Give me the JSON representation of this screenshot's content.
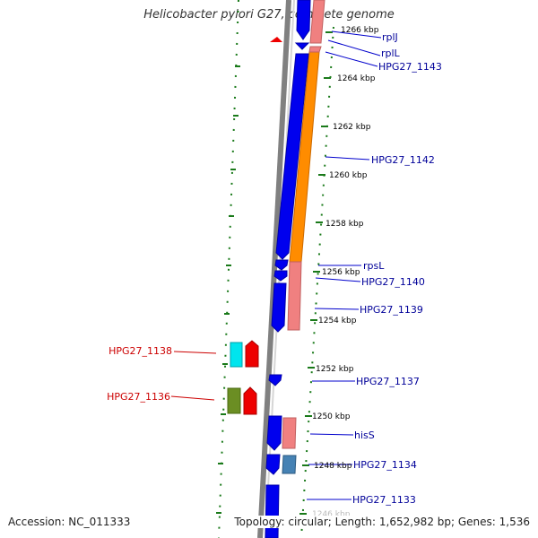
{
  "title": "Helicobacter pylori G27, complete genome",
  "footer": {
    "accession": "Accession: NC_011333",
    "summary": "Topology: circular; Length: 1,652,982 bp; Genes: 1,536"
  },
  "colors": {
    "background": "#ffffff",
    "backbone": "#808080",
    "tick": "#1a7a1a",
    "forward_label": "#000099",
    "reverse_label": "#cc0000",
    "cds_blue": "#0000ee",
    "orange": "#ff8c00",
    "pink": "#f08080",
    "cyan": "#00e5ee",
    "red": "#ee0000",
    "olive": "#6b8e23",
    "steelblue": "#4682b4"
  },
  "axis_labels": [
    "1266 kbp",
    "1264 kbp",
    "1262 kbp",
    "1260 kbp",
    "1258 kbp",
    "1256 kbp",
    "1254 kbp",
    "1252 kbp",
    "1250 kbp",
    "1248 kbp",
    "1246 kbp"
  ],
  "gene_labels_forward": [
    "rplJ",
    "rplL",
    "HPG27_1143",
    "HPG27_1142",
    "rpsL",
    "HPG27_1140",
    "HPG27_1139",
    "HPG27_1137",
    "hisS",
    "HPG27_1134",
    "HPG27_1133"
  ],
  "gene_labels_reverse": [
    "HPG27_1138",
    "HPG27_1136"
  ]
}
